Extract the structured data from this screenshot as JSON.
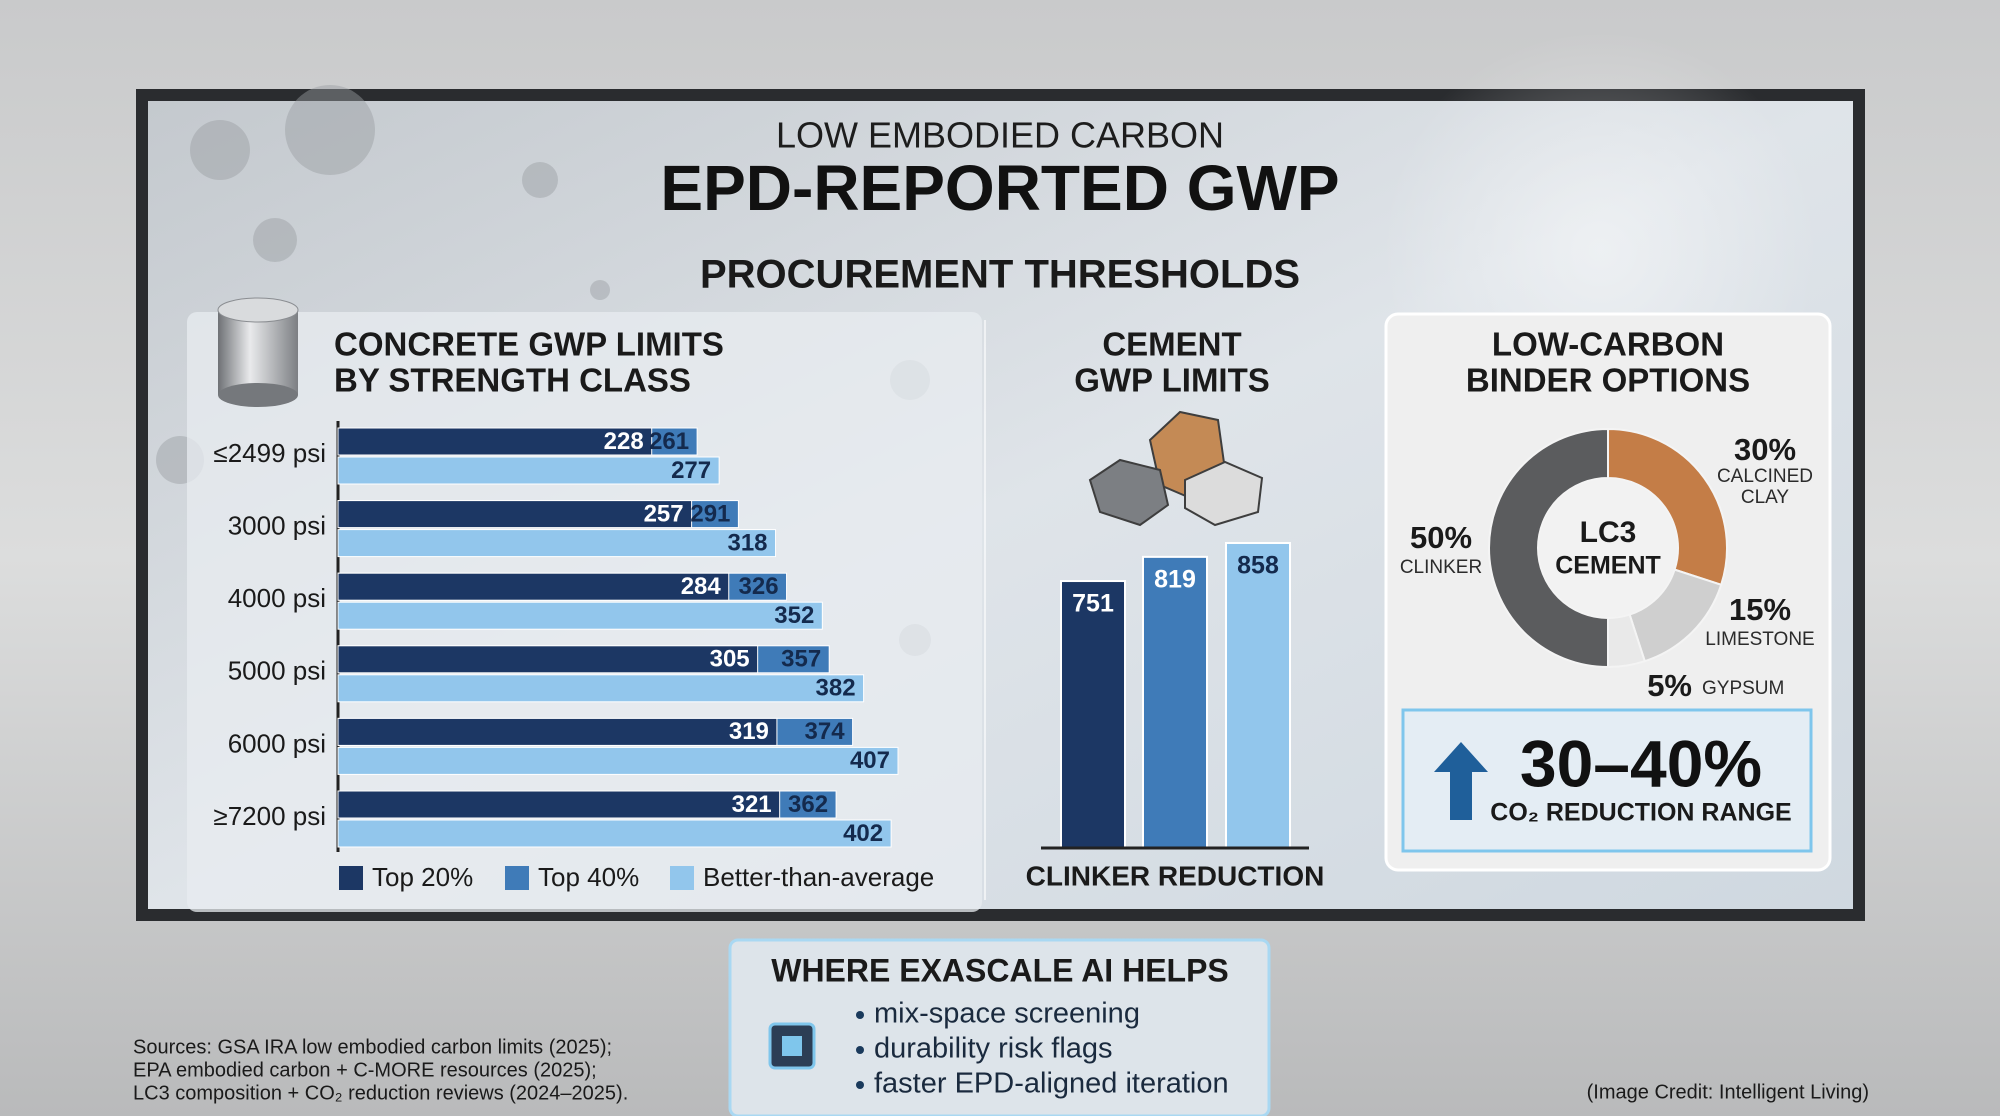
{
  "header": {
    "kicker": "LOW EMBODIED CARBON",
    "title": "EPD-REPORTED GWP",
    "subtitle": "PROCUREMENT THRESHOLDS"
  },
  "chart_data": [
    {
      "type": "bar",
      "orientation": "horizontal",
      "title": [
        "CONCRETE GWP LIMITS",
        "BY STRENGTH CLASS"
      ],
      "categories": [
        "≤2499 psi",
        "3000 psi",
        "4000 psi",
        "5000 psi",
        "6000 psi",
        "≥7200 psi"
      ],
      "series": [
        {
          "name": "Top 20%",
          "color": "#1c3764",
          "values": [
            228,
            257,
            284,
            305,
            319,
            321
          ]
        },
        {
          "name": "Top 40%",
          "color": "#3f7bb8",
          "values": [
            261,
            291,
            326,
            357,
            374,
            362
          ]
        },
        {
          "name": "Better-than-average",
          "color": "#92c6ec",
          "values": [
            277,
            318,
            352,
            382,
            407,
            402
          ]
        }
      ],
      "legend": "bottom"
    },
    {
      "type": "bar",
      "orientation": "vertical",
      "title": [
        "CEMENT",
        "GWP LIMITS"
      ],
      "xlabel": "CLINKER REDUCTION",
      "categories": [
        null,
        null,
        null
      ],
      "values": [
        751,
        819,
        858
      ],
      "colors": [
        "#1c3764",
        "#3f7bb8",
        "#92c6ec"
      ]
    },
    {
      "type": "donut",
      "title": [
        "LOW-CARBON",
        "BINDER OPTIONS"
      ],
      "center_label": [
        "LC3",
        "CEMENT"
      ],
      "categories": [
        "CALCINED CLAY",
        "LIMESTONE",
        "GYPSUM",
        "CLINKER"
      ],
      "values": [
        30,
        15,
        5,
        50
      ],
      "value_labels": [
        "30%",
        "15%",
        "5%",
        "50%"
      ],
      "colors": [
        "#c47d47",
        "#cfcfcf",
        "#e9e9e9",
        "#5b5c5e"
      ],
      "callout": {
        "value": "30–40%",
        "text": "CO₂ REDUCTION RANGE"
      }
    }
  ],
  "ai_panel": {
    "title": "WHERE EXASCALE AI HELPS",
    "items": [
      "mix-space screening",
      "durability risk flags",
      "faster EPD-aligned iteration"
    ]
  },
  "sources": [
    "Sources: GSA IRA low embodied carbon limits (2025);",
    "EPA embodied carbon + C-MORE resources (2025);",
    "LC3 composition + CO₂ reduction reviews (2024–2025)."
  ],
  "credit": "(Image Credit: Intelligent Living)"
}
